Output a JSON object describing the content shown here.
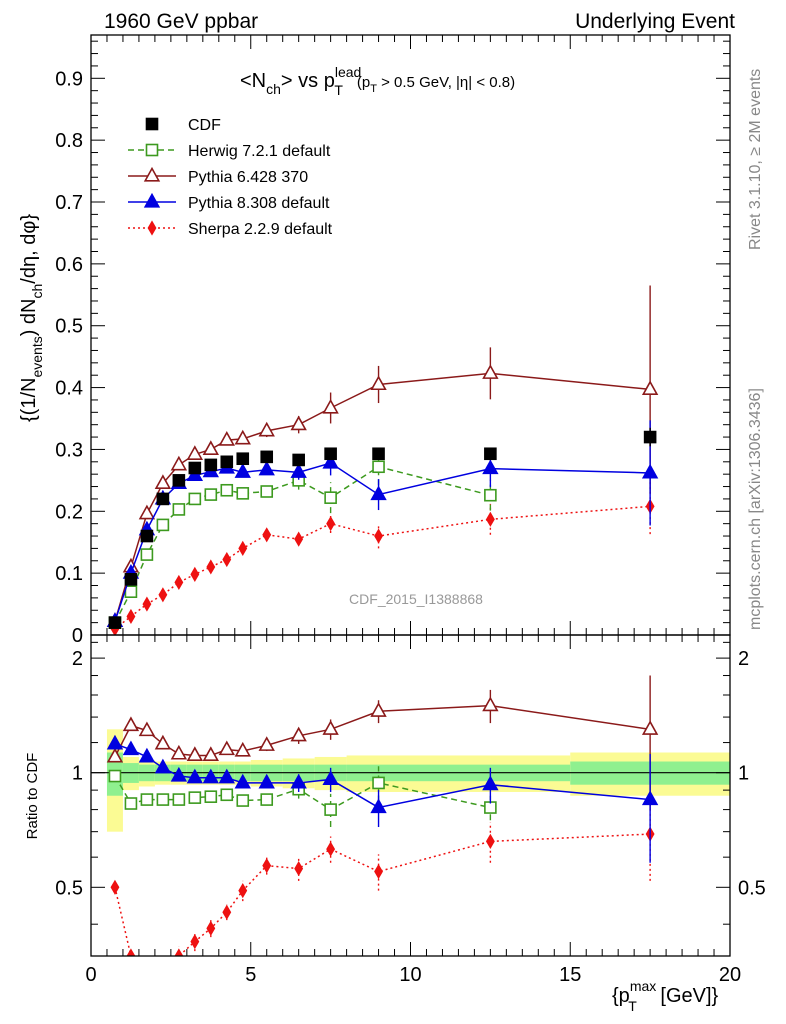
{
  "header": {
    "left": "1960 GeV ppbar",
    "right": "Underlying Event"
  },
  "side_labels": {
    "rivet": "Rivet 3.1.10, ≥ 2M events",
    "mcplots": "mcplots.cern.ch [arXiv:1306.3436]"
  },
  "watermark": "CDF_2015_I1388868",
  "colors": {
    "cdf": "#000000",
    "herwig": "#3d9a1f",
    "pythia6": "#8b1a1a",
    "pythia8": "#0000e0",
    "sherpa": "#ee1111",
    "band_inner": "#8ff08f",
    "band_outer": "#fbfb94"
  },
  "chart_data": [
    {
      "type": "line",
      "title": "<N_ch> vs p_T^lead (p_T > 0.5 GeV, |η| < 0.8)",
      "title_parts": {
        "main": "<N",
        "sub_ch": "ch",
        "vs": "> vs p",
        "sup_lead": "lead",
        "sub_T": "T",
        "cuts_open": "(p",
        "cuts_sub": "T",
        "cuts_rest": " > 0.5 GeV, |η| < 0.8)"
      },
      "ylabel": "{(1/N_events) dN_ch/dη, dφ}",
      "ylabel_parts": {
        "a": "{(1/N",
        "sub_events": "events",
        "b": ") dN",
        "sub_ch": "ch",
        "c": "/dη, dφ}"
      },
      "xlim": [
        0,
        20
      ],
      "ylim": [
        0,
        0.97
      ],
      "ytick_labels": [
        "0",
        "0.1",
        "0.2",
        "0.3",
        "0.4",
        "0.5",
        "0.6",
        "0.7",
        "0.8",
        "0.9"
      ],
      "legend_position": "top-left",
      "x": [
        0.75,
        1.25,
        1.75,
        2.25,
        2.75,
        3.25,
        3.75,
        4.25,
        4.75,
        5.5,
        6.5,
        7.5,
        9.0,
        12.5,
        17.5
      ],
      "series": [
        {
          "name": "CDF",
          "key": "cdf",
          "marker": "filled-square",
          "values": [
            0.02,
            0.09,
            0.16,
            0.22,
            0.25,
            0.27,
            0.275,
            0.28,
            0.285,
            0.288,
            0.283,
            0.293,
            0.293,
            0.293,
            0.32
          ],
          "errors": [
            0.003,
            0.004,
            0.004,
            0.005,
            0.005,
            0.005,
            0.005,
            0.005,
            0.006,
            0.006,
            0.007,
            0.008,
            0.009,
            0.01,
            0.015
          ]
        },
        {
          "name": "Herwig 7.2.1 default",
          "key": "herwig",
          "marker": "open-square",
          "line": "dashed",
          "values": [
            0.02,
            0.07,
            0.13,
            0.178,
            0.203,
            0.22,
            0.227,
            0.234,
            0.229,
            0.232,
            0.25,
            0.222,
            0.272,
            0.226,
            null
          ],
          "errors": [
            0.002,
            0.003,
            0.004,
            0.005,
            0.005,
            0.006,
            0.006,
            0.006,
            0.007,
            0.008,
            0.015,
            0.025,
            0.03,
            0.025,
            null
          ]
        },
        {
          "name": "Pythia 6.428 370",
          "key": "pythia6",
          "marker": "open-triangle",
          "line": "solid",
          "values": [
            0.022,
            0.11,
            0.196,
            0.245,
            0.275,
            0.292,
            0.3,
            0.315,
            0.317,
            0.33,
            0.34,
            0.367,
            0.405,
            0.423,
            0.397
          ],
          "errors": [
            0.002,
            0.004,
            0.005,
            0.006,
            0.006,
            0.007,
            0.007,
            0.008,
            0.008,
            0.01,
            0.014,
            0.025,
            0.03,
            0.042,
            0.168
          ]
        },
        {
          "name": "Pythia 8.308 default",
          "key": "pythia8",
          "marker": "filled-triangle",
          "line": "solid",
          "values": [
            0.022,
            0.1,
            0.17,
            0.22,
            0.245,
            0.258,
            0.264,
            0.27,
            0.263,
            0.267,
            0.263,
            0.278,
            0.227,
            0.269,
            0.262
          ],
          "errors": [
            0.002,
            0.003,
            0.004,
            0.005,
            0.005,
            0.006,
            0.006,
            0.006,
            0.007,
            0.008,
            0.012,
            0.02,
            0.025,
            0.03,
            0.085
          ]
        },
        {
          "name": "Sherpa 2.2.9 default",
          "key": "sherpa",
          "marker": "filled-diamond",
          "line": "dotted",
          "values": [
            0.01,
            0.03,
            0.05,
            0.065,
            0.085,
            0.098,
            0.11,
            0.122,
            0.14,
            0.162,
            0.155,
            0.18,
            0.16,
            0.187,
            0.208
          ],
          "errors": [
            0.001,
            0.002,
            0.002,
            0.003,
            0.004,
            0.004,
            0.005,
            0.005,
            0.006,
            0.007,
            0.01,
            0.015,
            0.02,
            0.025,
            0.045
          ]
        }
      ]
    },
    {
      "type": "line",
      "ylabel": "Ratio to CDF",
      "xlabel": "{p_T^max [GeV]}",
      "xlabel_parts": {
        "open": "{p",
        "sup_max": "max",
        "sub_T": "T",
        "rest": " [GeV]}"
      },
      "xlim": [
        0,
        20
      ],
      "ylim": [
        0.33,
        2.3
      ],
      "log_y": true,
      "ytick_labels": [
        "0.5",
        "1",
        "2"
      ],
      "xtick_labels": [
        "0",
        "5",
        "10",
        "15",
        "20"
      ],
      "x": [
        0.75,
        1.25,
        1.75,
        2.25,
        2.75,
        3.25,
        3.75,
        4.25,
        4.75,
        5.5,
        6.5,
        7.5,
        9.0,
        12.5,
        17.5
      ],
      "band": {
        "bin_edges": [
          0.5,
          1.0,
          1.5,
          2.0,
          2.5,
          3.0,
          3.5,
          4.0,
          4.5,
          5.0,
          6.0,
          7.0,
          8.0,
          10.0,
          15.0,
          20.0
        ],
        "inner": [
          0.13,
          0.06,
          0.05,
          0.05,
          0.05,
          0.05,
          0.05,
          0.05,
          0.05,
          0.05,
          0.05,
          0.05,
          0.05,
          0.05,
          0.07
        ],
        "outer": [
          0.3,
          0.1,
          0.08,
          0.07,
          0.07,
          0.07,
          0.07,
          0.07,
          0.07,
          0.08,
          0.09,
          0.1,
          0.11,
          0.11,
          0.13
        ]
      },
      "series": [
        {
          "name": "Herwig 7.2.1 default",
          "key": "herwig",
          "marker": "open-square",
          "line": "dashed",
          "values": [
            0.98,
            0.83,
            0.85,
            0.85,
            0.85,
            0.86,
            0.865,
            0.875,
            0.845,
            0.85,
            0.905,
            0.8,
            0.94,
            0.81,
            null
          ],
          "errors": [
            0.02,
            0.02,
            0.02,
            0.02,
            0.02,
            0.02,
            0.02,
            0.02,
            0.025,
            0.03,
            0.05,
            0.08,
            0.1,
            0.06,
            null
          ]
        },
        {
          "name": "Pythia 6.428 370",
          "key": "pythia6",
          "marker": "open-triangle",
          "line": "solid",
          "values": [
            1.1,
            1.33,
            1.29,
            1.19,
            1.12,
            1.11,
            1.11,
            1.15,
            1.14,
            1.18,
            1.25,
            1.3,
            1.45,
            1.5,
            1.3
          ],
          "errors": [
            0.02,
            0.03,
            0.03,
            0.03,
            0.03,
            0.03,
            0.03,
            0.03,
            0.03,
            0.04,
            0.06,
            0.08,
            0.1,
            0.15,
            0.5
          ]
        },
        {
          "name": "Pythia 8.308 default",
          "key": "pythia8",
          "marker": "filled-triangle",
          "line": "solid",
          "values": [
            1.19,
            1.15,
            1.1,
            1.03,
            0.98,
            0.97,
            0.97,
            0.97,
            0.94,
            0.94,
            0.94,
            0.96,
            0.81,
            0.93,
            0.85
          ],
          "errors": [
            0.02,
            0.02,
            0.02,
            0.02,
            0.02,
            0.02,
            0.02,
            0.02,
            0.025,
            0.03,
            0.05,
            0.07,
            0.09,
            0.1,
            0.27
          ]
        },
        {
          "name": "Sherpa 2.2.9 default",
          "key": "sherpa",
          "marker": "filled-diamond",
          "line": "dotted",
          "values": [
            0.5,
            0.33,
            0.31,
            0.3,
            0.33,
            0.36,
            0.39,
            0.43,
            0.49,
            0.57,
            0.56,
            0.63,
            0.55,
            0.66,
            0.69
          ],
          "errors": [
            0.01,
            0.01,
            0.01,
            0.01,
            0.02,
            0.02,
            0.02,
            0.02,
            0.03,
            0.03,
            0.04,
            0.05,
            0.06,
            0.08,
            0.17
          ]
        }
      ]
    }
  ]
}
